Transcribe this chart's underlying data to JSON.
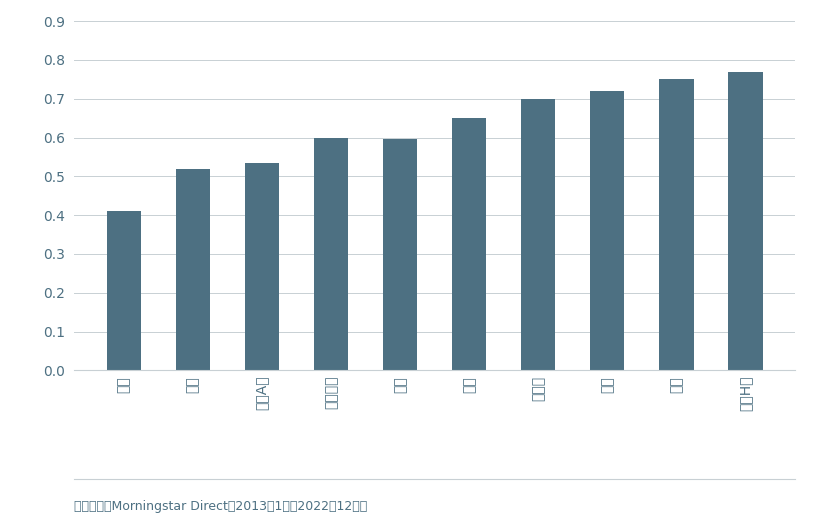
{
  "categories": [
    "日本",
    "印尼",
    "中國A股",
    "馬來西亞",
    "泰國",
    "印度",
    "新加坡",
    "台灣",
    "韓國",
    "中國H股"
  ],
  "values": [
    0.41,
    0.52,
    0.535,
    0.6,
    0.595,
    0.65,
    0.7,
    0.72,
    0.75,
    0.77
  ],
  "bar_color": "#4d7082",
  "background_color": "#ffffff",
  "ylim": [
    0.0,
    0.9
  ],
  "yticks": [
    0.0,
    0.1,
    0.2,
    0.3,
    0.4,
    0.5,
    0.6,
    0.7,
    0.8,
    0.9
  ],
  "ylabel": "",
  "xlabel": "",
  "footnote": "資料來源：Morningstar Direct。2013年1月至2022年12月。",
  "tick_color": "#4d7082",
  "tick_fontsize": 10,
  "footnote_fontsize": 9,
  "axis_color": "#c8d0d4"
}
